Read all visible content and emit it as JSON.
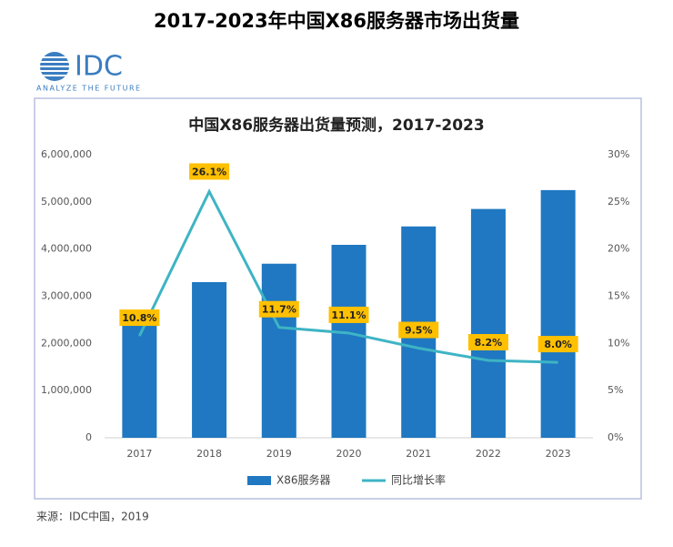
{
  "header": {
    "title": "2017-2023年中国X86服务器市场出货量"
  },
  "logo": {
    "name": "IDC",
    "tagline": "ANALYZE THE FUTURE"
  },
  "chart_data": {
    "type": "bar-line",
    "title": "中国X86服务器出货量预测，2017-2023",
    "categories": [
      "2017",
      "2018",
      "2019",
      "2020",
      "2021",
      "2022",
      "2023"
    ],
    "series": [
      {
        "name": "X86服务器",
        "type": "bar",
        "color": "#1f78c1",
        "values": [
          2620000,
          3300000,
          3690000,
          4090000,
          4480000,
          4850000,
          5250000
        ]
      },
      {
        "name": "同比增长率",
        "type": "line",
        "axis": "y2",
        "color": "#3eb4c4",
        "values": [
          10.8,
          26.1,
          11.7,
          11.1,
          9.5,
          8.2,
          8.0
        ],
        "value_labels": [
          "10.8%",
          "26.1%",
          "11.7%",
          "11.1%",
          "9.5%",
          "8.2%",
          "8.0%"
        ]
      }
    ],
    "ylim": [
      0,
      6000000
    ],
    "yticks": [
      0,
      {
        "value": 1000000,
        "label": "1,000,000"
      },
      {
        "value": 2000000,
        "label": "2,000,000"
      },
      {
        "value": 3000000,
        "label": "3,000,000"
      },
      {
        "value": 4000000,
        "label": "4,000,000"
      },
      {
        "value": 5000000,
        "label": "5,000,000"
      },
      {
        "value": 6000000,
        "label": "6,000,000"
      }
    ],
    "y2lim": [
      0,
      30
    ],
    "y2ticks": [
      {
        "value": 0,
        "label": "0%"
      },
      {
        "value": 5,
        "label": "5%"
      },
      {
        "value": 10,
        "label": "10%"
      },
      {
        "value": 15,
        "label": "15%"
      },
      {
        "value": 20,
        "label": "20%"
      },
      {
        "value": 25,
        "label": "25%"
      },
      {
        "value": 30,
        "label": "30%"
      }
    ],
    "grid": false,
    "legend": "bottom",
    "source": "来源：IDC中国，2019"
  }
}
